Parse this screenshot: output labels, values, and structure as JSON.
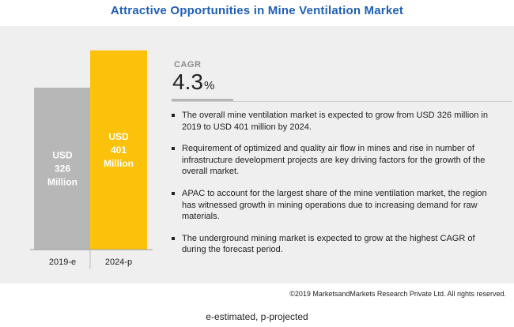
{
  "title": "Attractive Opportunities in Mine Ventilation Market",
  "cagr": {
    "label": "CAGR",
    "value": "4.3",
    "unit": "%"
  },
  "bullets": [
    "The overall mine ventilation market is expected to grow from USD 326 million in 2019 to USD 401 million by 2024.",
    "Requirement of optimized and quality air flow in mines and rise in number of infrastructure development projects are key driving factors for the growth of the overall market.",
    "APAC to account for the largest share of the mine ventilation market, the region has witnessed growth in mining operations due to increasing demand for raw materials.",
    "The underground mining market is expected to grow at the highest CAGR of during the forecast period."
  ],
  "copyright": "©2019 MarketsandMarkets Research Private Ltd. All rights reserved.",
  "footnote": "e-estimated, p-projected",
  "colors": {
    "title": "#1f5fb4",
    "bar_2019": "#b7b7b7",
    "bar_2024": "#fcc10b",
    "panel": "#efefef"
  },
  "chart_data": {
    "type": "bar",
    "categories": [
      "2019-e",
      "2024-p"
    ],
    "values": [
      326,
      401
    ],
    "data_labels": [
      [
        "USD",
        "326",
        "Million"
      ],
      [
        "USD",
        "401",
        "Million"
      ]
    ],
    "title": "",
    "xlabel": "",
    "ylabel": "",
    "ylim": [
      0,
      450
    ],
    "grid": false
  }
}
